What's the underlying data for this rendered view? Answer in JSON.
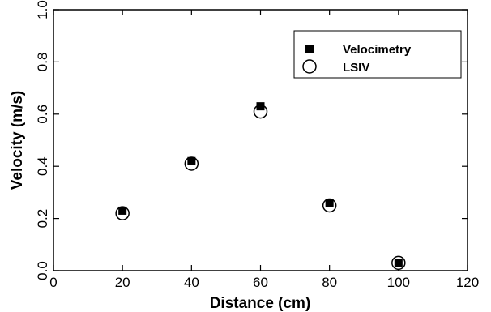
{
  "chart_data": {
    "type": "scatter",
    "xlabel": "Distance (cm)",
    "ylabel": "Velocity (m/s)",
    "xlim": [
      0,
      120
    ],
    "ylim": [
      0.0,
      1.0
    ],
    "xticks": [
      "0",
      "20",
      "40",
      "60",
      "80",
      "100",
      "120"
    ],
    "yticks": [
      "0.0",
      "0.2",
      "0.4",
      "0.6",
      "0.8",
      "1.0"
    ],
    "grid": false,
    "legend_position": "top-right",
    "series": [
      {
        "name": "Velocimetry",
        "marker": "filled-square",
        "color": "#000000",
        "x": [
          20,
          40,
          60,
          80,
          100
        ],
        "y": [
          0.23,
          0.42,
          0.63,
          0.26,
          0.03
        ]
      },
      {
        "name": "LSIV",
        "marker": "open-circle",
        "color": "#000000",
        "x": [
          20,
          40,
          60,
          80,
          100
        ],
        "y": [
          0.22,
          0.41,
          0.61,
          0.25,
          0.03
        ]
      }
    ]
  }
}
